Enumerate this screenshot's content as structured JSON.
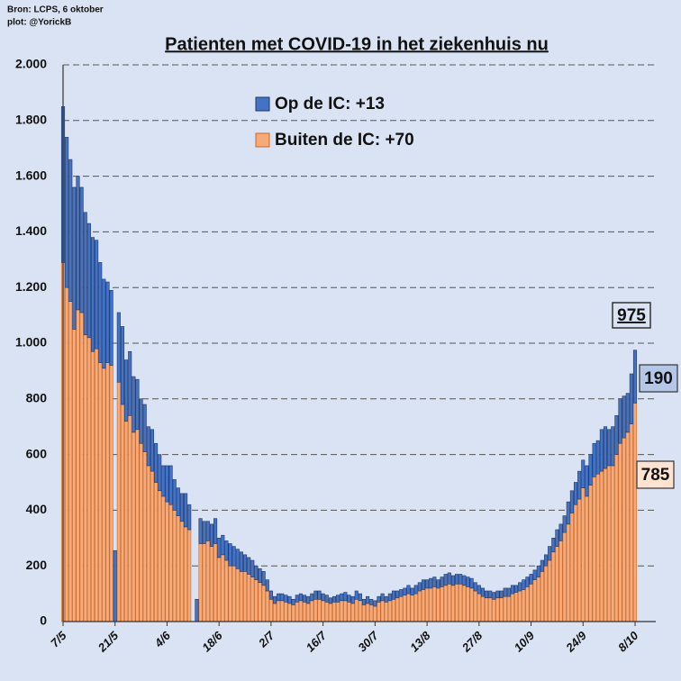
{
  "chart_data": {
    "type": "stacked_bar",
    "title": "Patienten met COVID-19 in het ziekenhuis nu",
    "source": "Bron: LCPS, 6 oktober",
    "credit": "plot: @YorickB",
    "annotations": [
      "975"
    ],
    "ylim": [
      0,
      2000
    ],
    "yticks": [
      0,
      200,
      400,
      600,
      800,
      {
        "value": 1000,
        "label": "1.000"
      },
      {
        "value": 1200,
        "label": "1.200"
      },
      {
        "value": 1400,
        "label": "1.400"
      },
      {
        "value": 1600,
        "label": "1.600"
      },
      {
        "value": 1800,
        "label": "1.800"
      },
      {
        "value": 2000,
        "label": "2.000"
      }
    ],
    "grid": true,
    "categories": [
      "7/5",
      null,
      null,
      null,
      null,
      null,
      null,
      null,
      null,
      null,
      null,
      null,
      null,
      null,
      "21/5",
      null,
      null,
      null,
      null,
      null,
      null,
      null,
      null,
      null,
      null,
      null,
      null,
      null,
      "4/6",
      null,
      null,
      null,
      null,
      null,
      null,
      null,
      null,
      null,
      null,
      null,
      null,
      null,
      "18/6",
      null,
      null,
      null,
      null,
      null,
      null,
      null,
      null,
      null,
      null,
      null,
      null,
      null,
      "2/7",
      null,
      null,
      null,
      null,
      null,
      null,
      null,
      null,
      null,
      null,
      null,
      null,
      null,
      "16/7",
      null,
      null,
      null,
      null,
      null,
      null,
      null,
      null,
      null,
      null,
      null,
      null,
      null,
      "30/7",
      null,
      null,
      null,
      null,
      null,
      null,
      null,
      null,
      null,
      null,
      null,
      null,
      null,
      "13/8",
      null,
      null,
      null,
      null,
      null,
      null,
      null,
      null,
      null,
      null,
      null,
      null,
      null,
      "27/8",
      null,
      null,
      null,
      null,
      null,
      null,
      null,
      null,
      null,
      null,
      null,
      null,
      null,
      "10/9",
      null,
      null,
      null,
      null,
      null,
      null,
      null,
      null,
      null,
      null,
      null,
      null,
      null,
      "24/9",
      null,
      null,
      null,
      null,
      null,
      null,
      null,
      null,
      null,
      null,
      null,
      null,
      null,
      "8/10"
    ],
    "series": [
      {
        "name": "Buiten de IC: +70",
        "color": "#f6aa78",
        "values": [
          1290,
          1200,
          1150,
          1050,
          1120,
          1110,
          1030,
          1020,
          970,
          980,
          930,
          910,
          930,
          920,
          0,
          860,
          780,
          720,
          740,
          680,
          690,
          640,
          610,
          560,
          540,
          500,
          470,
          450,
          430,
          420,
          400,
          380,
          360,
          340,
          330,
          0,
          0,
          280,
          280,
          290,
          270,
          280,
          230,
          240,
          220,
          200,
          200,
          190,
          180,
          180,
          170,
          160,
          150,
          140,
          130,
          110,
          80,
          65,
          75,
          75,
          70,
          65,
          60,
          70,
          75,
          70,
          65,
          75,
          80,
          80,
          75,
          70,
          65,
          70,
          70,
          75,
          75,
          70,
          65,
          80,
          75,
          60,
          65,
          60,
          55,
          70,
          75,
          70,
          75,
          80,
          85,
          90,
          95,
          100,
          95,
          100,
          110,
          115,
          120,
          120,
          125,
          120,
          125,
          130,
          135,
          130,
          135,
          135,
          130,
          125,
          120,
          110,
          100,
          90,
          85,
          85,
          80,
          85,
          85,
          90,
          90,
          100,
          105,
          110,
          115,
          125,
          135,
          150,
          160,
          180,
          200,
          220,
          250,
          270,
          290,
          320,
          350,
          390,
          420,
          440,
          480,
          450,
          490,
          520,
          530,
          540,
          550,
          560,
          560,
          600,
          640,
          660,
          680,
          710,
          785
        ],
        "value_labels": {
          "154": "785"
        }
      },
      {
        "name": "Op de IC: +13",
        "color": "#4472c4",
        "values": [
          560,
          540,
          510,
          510,
          480,
          450,
          440,
          410,
          410,
          390,
          360,
          320,
          290,
          270,
          255,
          250,
          280,
          220,
          230,
          200,
          180,
          160,
          170,
          140,
          150,
          140,
          130,
          110,
          130,
          140,
          110,
          100,
          100,
          120,
          90,
          0,
          80,
          90,
          80,
          70,
          80,
          90,
          70,
          70,
          70,
          80,
          70,
          70,
          70,
          60,
          60,
          60,
          50,
          50,
          50,
          40,
          30,
          25,
          25,
          25,
          25,
          25,
          20,
          25,
          25,
          25,
          25,
          25,
          30,
          30,
          25,
          25,
          20,
          20,
          25,
          25,
          30,
          25,
          25,
          30,
          25,
          20,
          25,
          20,
          20,
          20,
          25,
          20,
          25,
          30,
          25,
          25,
          25,
          30,
          25,
          30,
          30,
          35,
          30,
          35,
          35,
          30,
          35,
          40,
          40,
          35,
          35,
          35,
          35,
          35,
          35,
          30,
          30,
          30,
          25,
          25,
          25,
          25,
          25,
          30,
          30,
          30,
          25,
          30,
          35,
          35,
          35,
          35,
          40,
          40,
          40,
          50,
          50,
          60,
          60,
          60,
          80,
          80,
          80,
          100,
          100,
          110,
          110,
          120,
          120,
          150,
          150,
          130,
          140,
          140,
          160,
          150,
          140,
          180,
          190
        ],
        "value_labels": {
          "154": "190"
        }
      }
    ]
  }
}
